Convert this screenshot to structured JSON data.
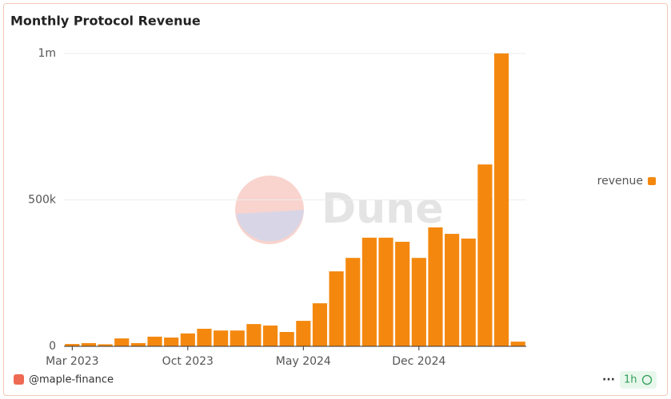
{
  "chart_data": {
    "type": "bar",
    "title": "Monthly Protocol Revenue",
    "categories": [
      "Mar 2023",
      null,
      null,
      null,
      null,
      null,
      null,
      "Oct 2023",
      null,
      null,
      null,
      null,
      null,
      null,
      "May 2024",
      null,
      null,
      null,
      null,
      null,
      null,
      "Dec 2024",
      null,
      null,
      null,
      null,
      null,
      null
    ],
    "series": [
      {
        "name": "revenue",
        "color": "#f4880f",
        "values": [
          8000,
          11000,
          7000,
          27000,
          11000,
          33000,
          30000,
          44000,
          60000,
          54000,
          54000,
          76000,
          71000,
          49000,
          87000,
          147000,
          256000,
          302000,
          371000,
          371000,
          357000,
          302000,
          406000,
          384000,
          368000,
          621000,
          1000000,
          16000
        ]
      }
    ],
    "ylim": [
      0,
      1000000
    ],
    "yticks": [
      0,
      {
        "value": 500000,
        "label": "500k"
      },
      {
        "value": 1000000,
        "label": "1m"
      }
    ],
    "grid": true,
    "legend": "right",
    "watermark": "Dune",
    "footer": {
      "author": "@maple-finance",
      "refresh": "1h"
    }
  }
}
